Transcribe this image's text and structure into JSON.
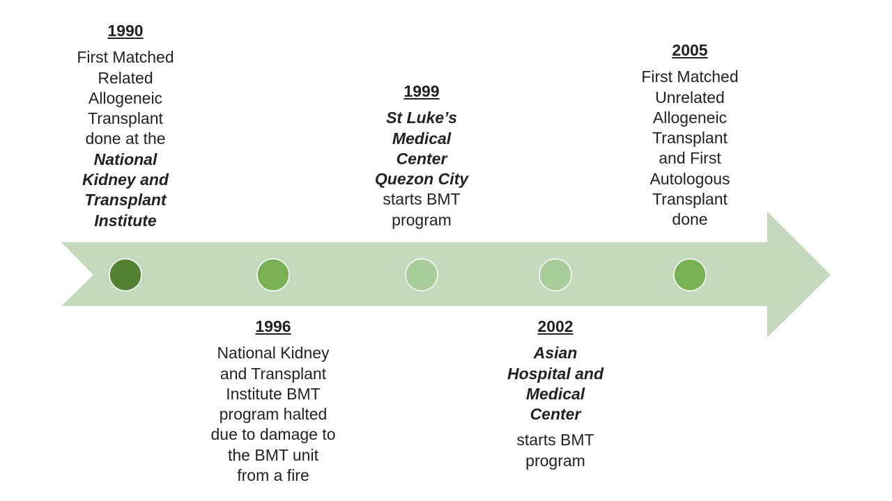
{
  "timeline": {
    "arrow_color": "#c4d9bb",
    "events": [
      {
        "year": "1990",
        "dot_color": "#548235",
        "lines": [
          {
            "text": "First Matched",
            "emph": false
          },
          {
            "text": "Related",
            "emph": false
          },
          {
            "text": "Allogeneic",
            "emph": false
          },
          {
            "text": "Transplant",
            "emph": false
          },
          {
            "text": "done at the",
            "emph": false
          },
          {
            "text": "National",
            "emph": true
          },
          {
            "text": "Kidney and",
            "emph": true
          },
          {
            "text": "Transplant",
            "emph": true
          },
          {
            "text": "Institute",
            "emph": true
          }
        ]
      },
      {
        "year": "1996",
        "dot_color": "#78b154",
        "lines": [
          {
            "text": "National Kidney",
            "emph": false
          },
          {
            "text": "and Transplant",
            "emph": false
          },
          {
            "text": "Institute BMT",
            "emph": false
          },
          {
            "text": "program halted",
            "emph": false
          },
          {
            "text": "due to damage to",
            "emph": false
          },
          {
            "text": "the BMT unit",
            "emph": false
          },
          {
            "text": "from a fire",
            "emph": false
          }
        ]
      },
      {
        "year": "1999",
        "dot_color": "#a9cd98",
        "lines": [
          {
            "text": "St Luke’s",
            "emph": true
          },
          {
            "text": "Medical",
            "emph": true
          },
          {
            "text": "Center",
            "emph": true
          },
          {
            "text": "Quezon City",
            "emph": true
          },
          {
            "text": "starts BMT",
            "emph": false
          },
          {
            "text": "program",
            "emph": false
          }
        ]
      },
      {
        "year": "2002",
        "dot_color": "#a9cd98",
        "lines": [
          {
            "text": "Asian",
            "emph": true
          },
          {
            "text": "Hospital and",
            "emph": true
          },
          {
            "text": "Medical",
            "emph": true
          },
          {
            "text": "Center",
            "emph": true
          },
          {
            "text": "starts BMT",
            "emph": false,
            "gap": true
          },
          {
            "text": "program",
            "emph": false
          }
        ]
      },
      {
        "year": "2005",
        "dot_color": "#78b154",
        "lines": [
          {
            "text": "First Matched",
            "emph": false
          },
          {
            "text": "Unrelated",
            "emph": false
          },
          {
            "text": "Allogeneic",
            "emph": false
          },
          {
            "text": "Transplant",
            "emph": false
          },
          {
            "text": "and First",
            "emph": false
          },
          {
            "text": "Autologous",
            "emph": false
          },
          {
            "text": "Transplant",
            "emph": false
          },
          {
            "text": "done",
            "emph": false
          }
        ]
      }
    ]
  }
}
